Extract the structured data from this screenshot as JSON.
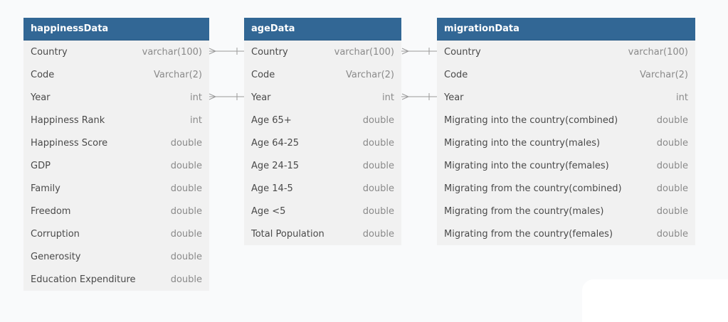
{
  "tables": {
    "happiness": {
      "name": "happinessData",
      "columns": [
        {
          "name": "Country",
          "type": "varchar(100)"
        },
        {
          "name": "Code",
          "type": "Varchar(2)"
        },
        {
          "name": "Year",
          "type": "int"
        },
        {
          "name": "Happiness Rank",
          "type": "int"
        },
        {
          "name": "Happiness Score",
          "type": "double"
        },
        {
          "name": "GDP",
          "type": "double"
        },
        {
          "name": "Family",
          "type": "double"
        },
        {
          "name": "Freedom",
          "type": "double"
        },
        {
          "name": "Corruption",
          "type": "double"
        },
        {
          "name": "Generosity",
          "type": "double"
        },
        {
          "name": "Education Expenditure",
          "type": "double"
        }
      ]
    },
    "age": {
      "name": "ageData",
      "columns": [
        {
          "name": "Country",
          "type": "varchar(100)"
        },
        {
          "name": "Code",
          "type": "Varchar(2)"
        },
        {
          "name": "Year",
          "type": "int"
        },
        {
          "name": "Age 65+",
          "type": "double"
        },
        {
          "name": "Age 64-25",
          "type": "double"
        },
        {
          "name": "Age 24-15",
          "type": "double"
        },
        {
          "name": "Age 14-5",
          "type": "double"
        },
        {
          "name": "Age <5",
          "type": "double"
        },
        {
          "name": "Total Population",
          "type": "double"
        }
      ]
    },
    "migration": {
      "name": "migrationData",
      "columns": [
        {
          "name": "Country",
          "type": "varchar(100)"
        },
        {
          "name": "Code",
          "type": "Varchar(2)"
        },
        {
          "name": "Year",
          "type": "int"
        },
        {
          "name": "Migrating into the country(combined)",
          "type": "double"
        },
        {
          "name": "Migrating into the country(males)",
          "type": "double"
        },
        {
          "name": "Migrating into the country(females)",
          "type": "double"
        },
        {
          "name": "Migrating from the country(combined)",
          "type": "double"
        },
        {
          "name": "Migrating from the country(males)",
          "type": "double"
        },
        {
          "name": "Migrating from the country(females)",
          "type": "double"
        }
      ]
    }
  },
  "colors": {
    "header": "#326795",
    "table_bg": "#f1f1f1",
    "connector": "#9a9a9a"
  },
  "relationships": [
    {
      "from": "happinessData.Country",
      "to": "ageData.Country",
      "marker": "many-to-one"
    },
    {
      "from": "happinessData.Year",
      "to": "ageData.Year",
      "marker": "many-to-one"
    },
    {
      "from": "ageData.Country",
      "to": "migrationData.Country",
      "marker": "many-to-one"
    },
    {
      "from": "ageData.Year",
      "to": "migrationData.Year",
      "marker": "many-to-one"
    }
  ]
}
